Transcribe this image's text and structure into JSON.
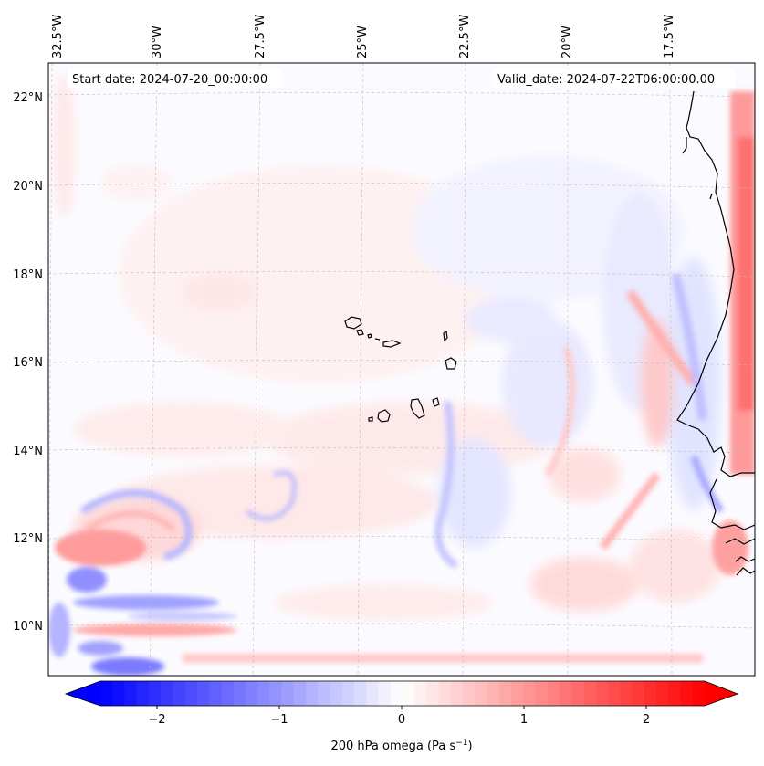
{
  "map": {
    "start_date": "Start date: 2024-07-20_00:00:00",
    "valid_date": "Valid_date: 2024-07-22T06:00:00.00",
    "lon_labels": [
      "32.5°W",
      "30°W",
      "27.5°W",
      "25°W",
      "22.5°W",
      "20°W",
      "17.5°W"
    ],
    "lat_labels": [
      "22°N",
      "20°N",
      "18°N",
      "16°N",
      "14°N",
      "12°N",
      "10°N"
    ],
    "islands": [
      "Santo Antão",
      "São Vicente",
      "Santa Luzia",
      "São Nicolau",
      "Sal",
      "Boa Vista",
      "Maio",
      "Santiago",
      "Fogo",
      "Brava"
    ],
    "colors": {
      "positive": "#ff0000",
      "negative": "#0000ff",
      "neutral": "#ffffff"
    }
  },
  "colorbar": {
    "label": "200 hPa omega (Pa s",
    "label_exp": "−1",
    "label_close": ")",
    "range": [
      -2.7,
      2.7
    ],
    "ticks": [
      {
        "value": -2,
        "label": "−2"
      },
      {
        "value": -1,
        "label": "−1"
      },
      {
        "value": 0,
        "label": "0"
      },
      {
        "value": 1,
        "label": "1"
      },
      {
        "value": 2,
        "label": "2"
      }
    ]
  }
}
